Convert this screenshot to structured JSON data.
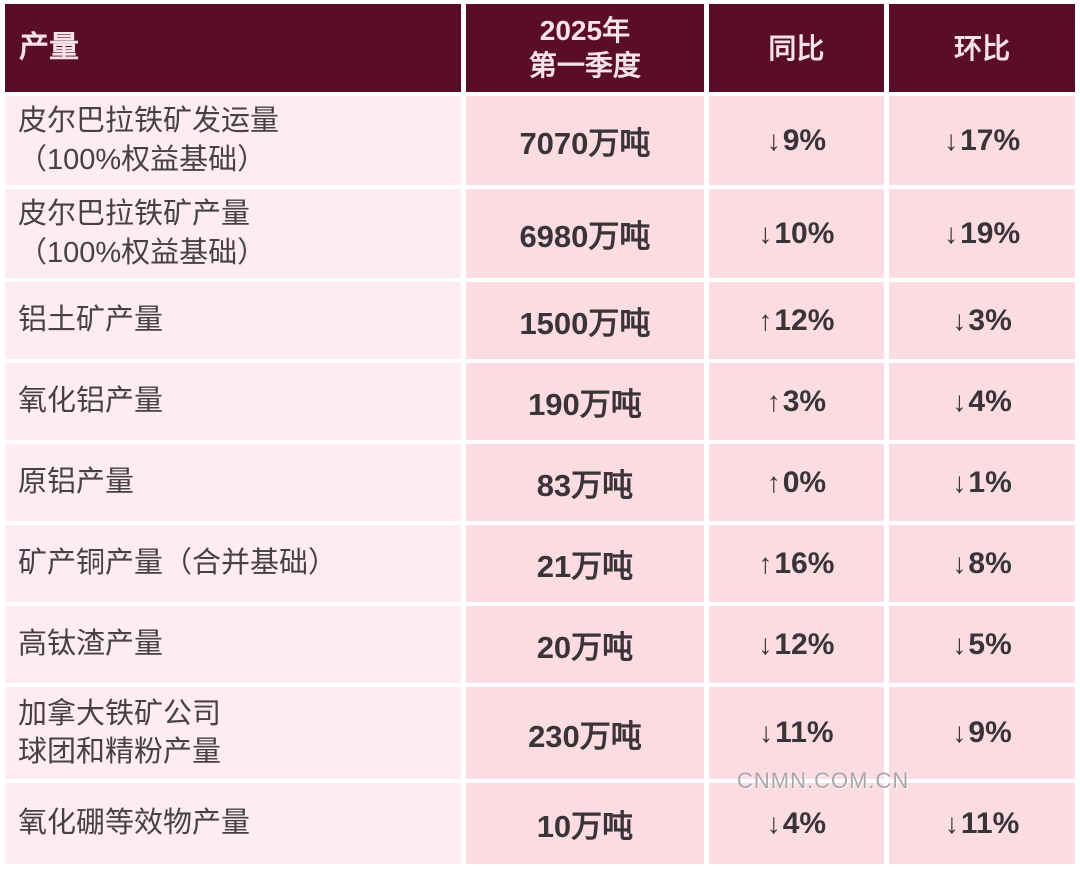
{
  "colors": {
    "header_bg": "#5A0E26",
    "header_text": "#F7E2E8",
    "product_cell_bg": "#FDEDF0",
    "value_cell_bg": "#FADCE2",
    "text_dark": "#3A3436",
    "watermark_gray": "#A9A7A9",
    "grid_white": "#FFFFFF"
  },
  "watermark": {
    "text": "CNMN.COM.CN"
  },
  "chart_data": {
    "type": "table",
    "title": "",
    "columns": [
      "产量",
      "2025年\n第一季度",
      "同比",
      "环比"
    ],
    "rows": [
      {
        "product": "皮尔巴拉铁矿发运量\n（100%权益基础）",
        "q1_2025": "7070万吨",
        "yoy_arrow": "↓",
        "yoy_value": "9%",
        "yoy_change_pct": -9,
        "qoq_arrow": "↓",
        "qoq_value": "17%",
        "qoq_change_pct": -17
      },
      {
        "product": "皮尔巴拉铁矿产量\n（100%权益基础）",
        "q1_2025": "6980万吨",
        "yoy_arrow": "↓",
        "yoy_value": "10%",
        "yoy_change_pct": -10,
        "qoq_arrow": "↓",
        "qoq_value": "19%",
        "qoq_change_pct": -19
      },
      {
        "product": "铝土矿产量",
        "q1_2025": "1500万吨",
        "yoy_arrow": "↑",
        "yoy_value": "12%",
        "yoy_change_pct": 12,
        "qoq_arrow": "↓",
        "qoq_value": "3%",
        "qoq_change_pct": -3
      },
      {
        "product": "氧化铝产量",
        "q1_2025": "190万吨",
        "yoy_arrow": "↑",
        "yoy_value": "3%",
        "yoy_change_pct": 3,
        "qoq_arrow": "↓",
        "qoq_value": "4%",
        "qoq_change_pct": -4
      },
      {
        "product": "原铝产量",
        "q1_2025": "83万吨",
        "yoy_arrow": "↑",
        "yoy_value": "0%",
        "yoy_change_pct": 0,
        "qoq_arrow": "↓",
        "qoq_value": "1%",
        "qoq_change_pct": -1
      },
      {
        "product": "矿产铜产量（合并基础）",
        "q1_2025": "21万吨",
        "yoy_arrow": "↑",
        "yoy_value": "16%",
        "yoy_change_pct": 16,
        "qoq_arrow": "↓",
        "qoq_value": "8%",
        "qoq_change_pct": -8
      },
      {
        "product": "高钛渣产量",
        "q1_2025": "20万吨",
        "yoy_arrow": "↓",
        "yoy_value": "12%",
        "yoy_change_pct": -12,
        "qoq_arrow": "↓",
        "qoq_value": "5%",
        "qoq_change_pct": -5
      },
      {
        "product": "加拿大铁矿公司\n球团和精粉产量",
        "q1_2025": "230万吨",
        "yoy_arrow": "↓",
        "yoy_value": "11%",
        "yoy_change_pct": -11,
        "qoq_arrow": "↓",
        "qoq_value": "9%",
        "qoq_change_pct": -9
      },
      {
        "product": "氧化硼等效物产量",
        "q1_2025": "10万吨",
        "yoy_arrow": "↓",
        "yoy_value": "4%",
        "yoy_change_pct": -4,
        "qoq_arrow": "↓",
        "qoq_value": "11%",
        "qoq_change_pct": -11
      }
    ]
  }
}
